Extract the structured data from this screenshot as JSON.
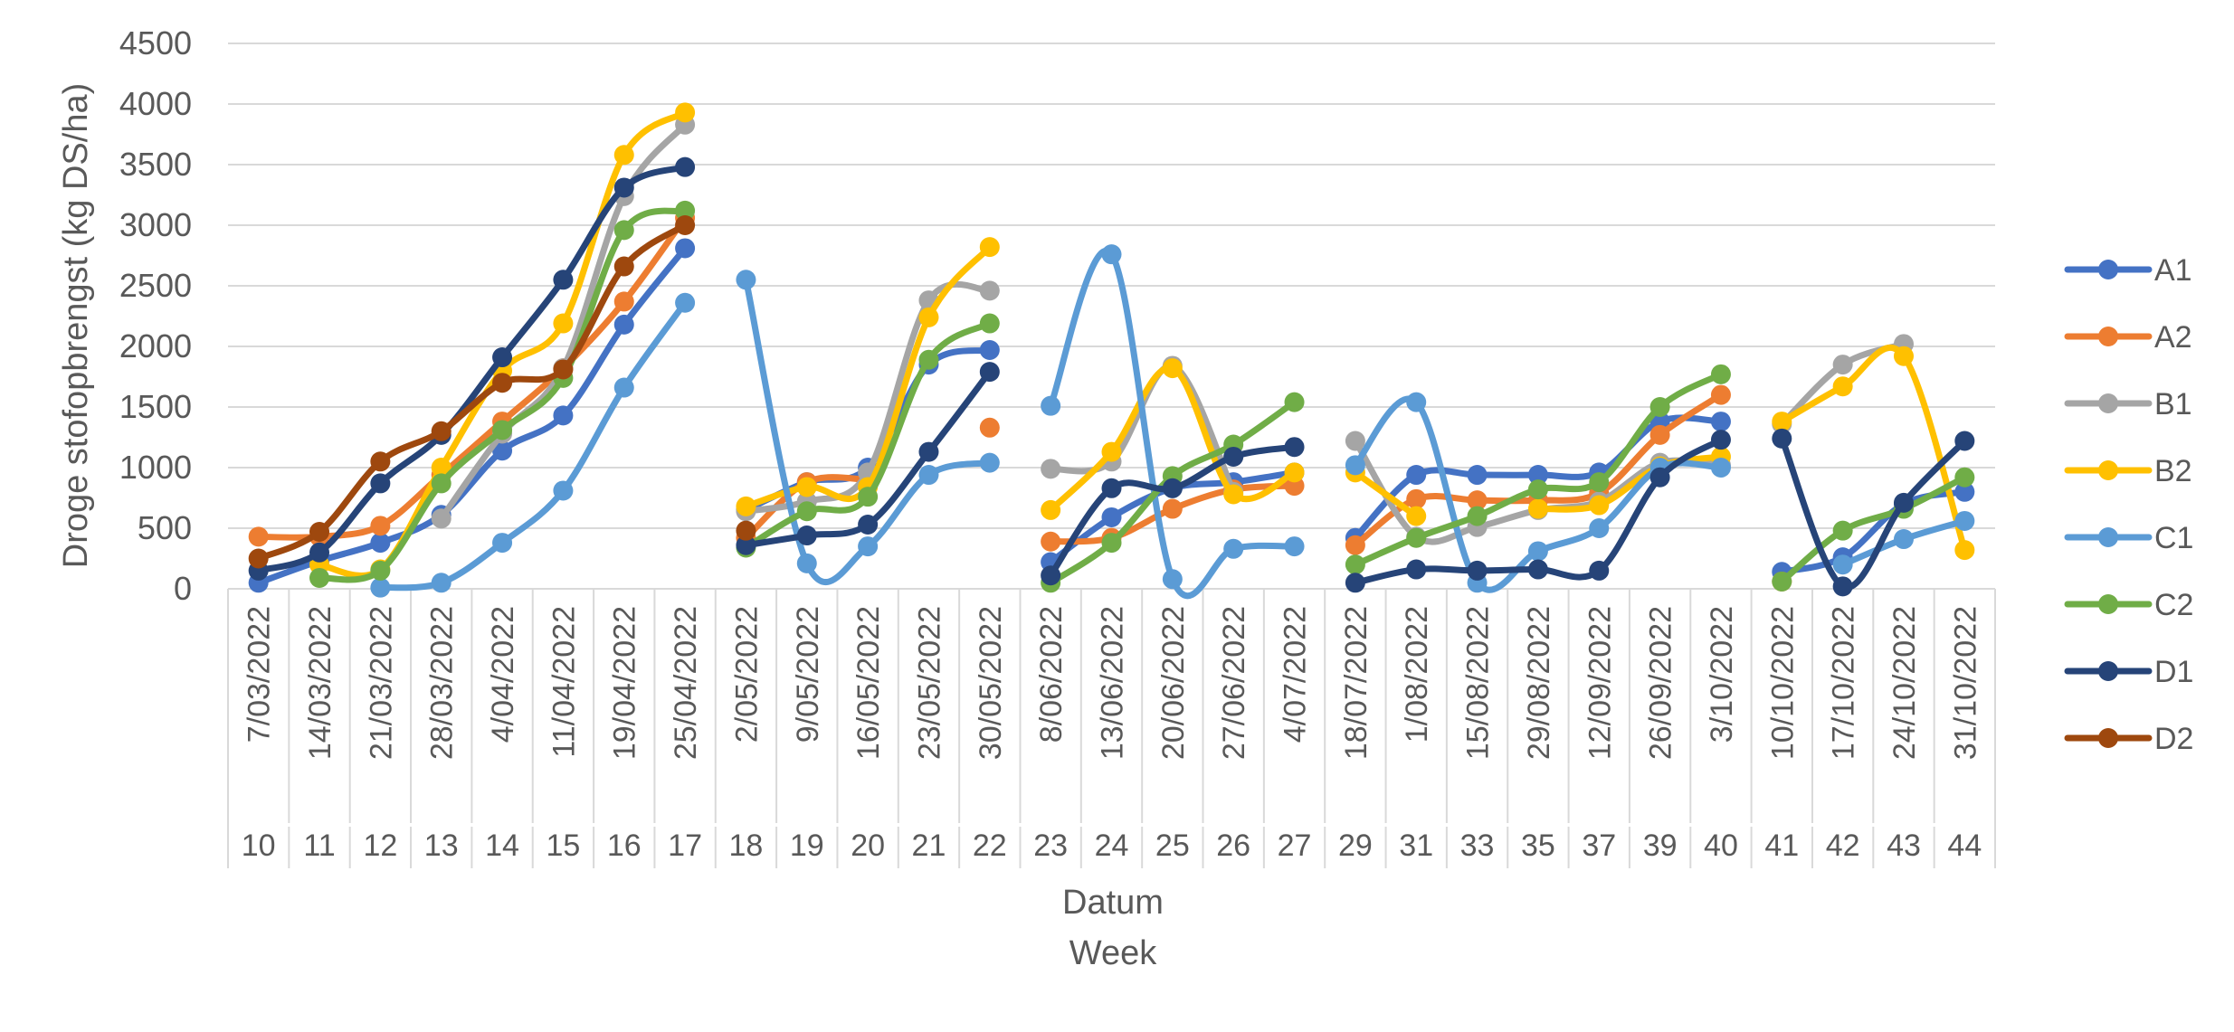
{
  "chart_data": {
    "type": "line",
    "ylabel": "Droge stofopbrengst (kg DS/ha)",
    "xlabel": "Datum",
    "xlabel2": "Week",
    "ylim": [
      0,
      4500
    ],
    "yticks": [
      "0",
      "500",
      "1000",
      "1500",
      "2000",
      "2500",
      "3000",
      "3500",
      "4000",
      "4500"
    ],
    "grid": true,
    "legend_position": "right",
    "categories": [
      "7/03/2022",
      "14/03/2022",
      "21/03/2022",
      "28/03/2022",
      "4/04/2022",
      "11/04/2022",
      "19/04/2022",
      "25/04/2022",
      "2/05/2022",
      "9/05/2022",
      "16/05/2022",
      "23/05/2022",
      "30/05/2022",
      "8/06/2022",
      "13/06/2022",
      "20/06/2022",
      "27/06/2022",
      "4/07/2022",
      "18/07/2022",
      "1/08/2022",
      "15/08/2022",
      "29/08/2022",
      "12/09/2022",
      "26/09/2022",
      "3/10/2022",
      "10/10/2022",
      "17/10/2022",
      "24/10/2022",
      "31/10/2022"
    ],
    "weeks": [
      "10",
      "11",
      "12",
      "13",
      "14",
      "15",
      "16",
      "17",
      "18",
      "19",
      "20",
      "21",
      "22",
      "23",
      "24",
      "25",
      "26",
      "27",
      "29",
      "31",
      "33",
      "35",
      "37",
      "39",
      "40",
      "41",
      "42",
      "43",
      "44"
    ],
    "series": [
      {
        "name": "A1",
        "color": "#4472C4",
        "values": [
          50,
          230,
          380,
          610,
          1140,
          1430,
          2180,
          2810,
          650,
          880,
          1000,
          1850,
          1970,
          220,
          590,
          830,
          880,
          960,
          420,
          940,
          940,
          940,
          960,
          1380,
          1380,
          140,
          260,
          700,
          800
        ]
      },
      {
        "name": "A2",
        "color": "#ED7D31",
        "values": [
          430,
          430,
          520,
          940,
          1380,
          1820,
          2370,
          3060,
          420,
          880,
          900,
          null,
          1330,
          390,
          420,
          660,
          820,
          850,
          360,
          740,
          730,
          730,
          790,
          1270,
          1600,
          60,
          null,
          null,
          null
        ]
      },
      {
        "name": "B1",
        "color": "#A5A5A5",
        "values": [
          null,
          null,
          null,
          580,
          1280,
          1820,
          3240,
          3830,
          640,
          720,
          960,
          2380,
          2460,
          990,
          1050,
          1840,
          800,
          null,
          1220,
          430,
          510,
          650,
          720,
          1040,
          1020,
          1360,
          1850,
          2020,
          null
        ]
      },
      {
        "name": "B2",
        "color": "#FFC000",
        "values": [
          null,
          200,
          160,
          1000,
          1800,
          2190,
          3580,
          3930,
          680,
          840,
          840,
          2240,
          2820,
          650,
          1130,
          1820,
          780,
          960,
          960,
          600,
          null,
          660,
          690,
          1010,
          1090,
          1380,
          1670,
          1920,
          320
        ]
      },
      {
        "name": "C1",
        "color": "#5B9BD5",
        "values": [
          null,
          null,
          10,
          50,
          380,
          810,
          1660,
          2360,
          2550,
          210,
          350,
          940,
          1040,
          1510,
          2760,
          80,
          330,
          350,
          1020,
          1540,
          50,
          310,
          500,
          1000,
          1000,
          null,
          200,
          410,
          560
        ]
      },
      {
        "name": "C2",
        "color": "#70AD47",
        "values": [
          null,
          90,
          150,
          870,
          1310,
          1740,
          2960,
          3120,
          340,
          640,
          760,
          1890,
          2190,
          50,
          380,
          930,
          1190,
          1540,
          200,
          420,
          600,
          820,
          880,
          1500,
          1770,
          60,
          480,
          660,
          920
        ]
      },
      {
        "name": "D1",
        "color": "#264478",
        "values": [
          150,
          300,
          870,
          1270,
          1910,
          2550,
          3310,
          3480,
          360,
          440,
          530,
          1130,
          1790,
          110,
          830,
          830,
          1090,
          1170,
          50,
          160,
          150,
          160,
          150,
          920,
          1230,
          1240,
          20,
          710,
          1220
        ]
      },
      {
        "name": "D2",
        "color": "#9E480E",
        "values": [
          250,
          470,
          1050,
          1300,
          1700,
          1810,
          2660,
          3000,
          480,
          null,
          null,
          null,
          null,
          null,
          null,
          null,
          null,
          null,
          null,
          null,
          null,
          null,
          null,
          null,
          null,
          null,
          null,
          null,
          null
        ]
      }
    ],
    "segments": [
      [
        0,
        7
      ],
      [
        8,
        12
      ],
      [
        13,
        17
      ],
      [
        18,
        24
      ],
      [
        25,
        28
      ]
    ]
  }
}
